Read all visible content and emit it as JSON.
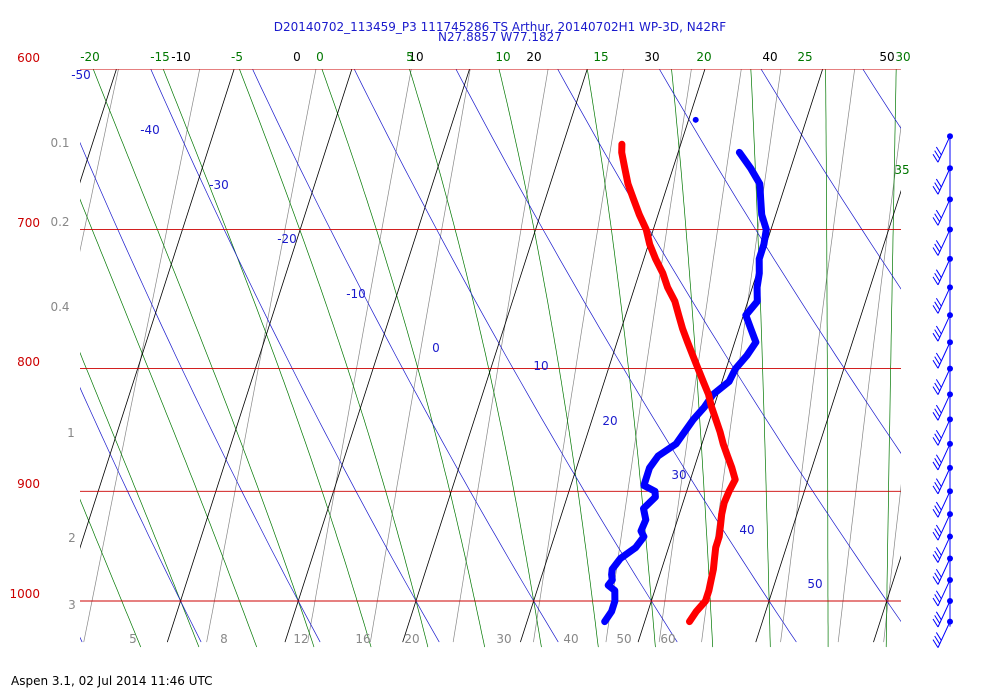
{
  "title_line1": "D20140702_113459_P3 111745286 TS Arthur, 20140702H1 WP-3D, N42RF",
  "title_line2": "N27.8857 W77.1827",
  "footer": "Aspen 3.1, 02 Jul 2014  11:46 UTC",
  "colors": {
    "isobar": "#cc0000",
    "isotherm": "#000000",
    "dry_adiabat": "#1a1acc",
    "moist_adiabat": "#007700",
    "mixing_ratio": "#888888",
    "temperature": "#ff0000",
    "dewpoint": "#0000ff",
    "wind": "#0000ff"
  },
  "chart_data": {
    "type": "skew-t",
    "pressure_range_hPa": [
      1025,
      600
    ],
    "pressure_labels": [
      "600",
      "700",
      "800",
      "900",
      "1000"
    ],
    "isobars_hPa": [
      600,
      700,
      800,
      900,
      1000
    ],
    "isotherm_labels": [
      "-10",
      "0",
      "10",
      "20",
      "30",
      "40",
      "50"
    ],
    "isotherms_C": [
      -20,
      -10,
      0,
      10,
      20,
      30,
      40,
      50,
      60
    ],
    "dry_adiabat_labels": [
      "-50",
      "-40",
      "-30",
      "-20",
      "-10",
      "0",
      "10",
      "20",
      "30",
      "40",
      "50"
    ],
    "moist_adiabat_labels": [
      "-20",
      "-15",
      "-5",
      "0",
      "5",
      "10",
      "15",
      "20",
      "25",
      "30",
      "35"
    ],
    "mixing_ratio_left_labels": [
      "0.1",
      "0.2",
      "0.4",
      "1",
      "2",
      "3"
    ],
    "mixing_ratio_bottom_labels": [
      "5",
      "8",
      "12",
      "16",
      "20",
      "30",
      "40",
      "50",
      "60"
    ],
    "temperature_profile": [
      {
        "p": 1020,
        "t": 23.8
      },
      {
        "p": 1010,
        "t": 24.1
      },
      {
        "p": 1000,
        "t": 24.6
      },
      {
        "p": 990,
        "t": 24.6
      },
      {
        "p": 980,
        "t": 24.5
      },
      {
        "p": 970,
        "t": 24.4
      },
      {
        "p": 960,
        "t": 24.2
      },
      {
        "p": 950,
        "t": 24.0
      },
      {
        "p": 940,
        "t": 24.0
      },
      {
        "p": 930,
        "t": 23.8
      },
      {
        "p": 920,
        "t": 23.6
      },
      {
        "p": 910,
        "t": 23.5
      },
      {
        "p": 900,
        "t": 23.6
      },
      {
        "p": 890,
        "t": 23.8
      },
      {
        "p": 880,
        "t": 23.2
      },
      {
        "p": 870,
        "t": 22.5
      },
      {
        "p": 860,
        "t": 21.8
      },
      {
        "p": 850,
        "t": 21.2
      },
      {
        "p": 840,
        "t": 20.5
      },
      {
        "p": 830,
        "t": 19.8
      },
      {
        "p": 820,
        "t": 19.2
      },
      {
        "p": 810,
        "t": 18.4
      },
      {
        "p": 800,
        "t": 17.6
      },
      {
        "p": 790,
        "t": 16.8
      },
      {
        "p": 780,
        "t": 16.0
      },
      {
        "p": 770,
        "t": 15.2
      },
      {
        "p": 760,
        "t": 14.5
      },
      {
        "p": 750,
        "t": 13.8
      },
      {
        "p": 740,
        "t": 12.8
      },
      {
        "p": 730,
        "t": 12.0
      },
      {
        "p": 720,
        "t": 11.0
      },
      {
        "p": 710,
        "t": 10.1
      },
      {
        "p": 700,
        "t": 9.4
      },
      {
        "p": 690,
        "t": 8.4
      },
      {
        "p": 680,
        "t": 7.5
      },
      {
        "p": 670,
        "t": 6.6
      },
      {
        "p": 660,
        "t": 5.9
      },
      {
        "p": 650,
        "t": 5.2
      },
      {
        "p": 645,
        "t": 5.0
      }
    ],
    "dewpoint_profile": [
      {
        "p": 1020,
        "t": 16.6
      },
      {
        "p": 1010,
        "t": 16.9
      },
      {
        "p": 1000,
        "t": 16.9
      },
      {
        "p": 990,
        "t": 16.6
      },
      {
        "p": 985,
        "t": 15.9
      },
      {
        "p": 980,
        "t": 16.1
      },
      {
        "p": 975,
        "t": 15.9
      },
      {
        "p": 970,
        "t": 15.8
      },
      {
        "p": 960,
        "t": 16.2
      },
      {
        "p": 950,
        "t": 17.2
      },
      {
        "p": 940,
        "t": 17.6
      },
      {
        "p": 935,
        "t": 17.2
      },
      {
        "p": 925,
        "t": 17.3
      },
      {
        "p": 915,
        "t": 16.8
      },
      {
        "p": 905,
        "t": 17.5
      },
      {
        "p": 900,
        "t": 17.3
      },
      {
        "p": 895,
        "t": 16.2
      },
      {
        "p": 890,
        "t": 16.2
      },
      {
        "p": 880,
        "t": 16.2
      },
      {
        "p": 870,
        "t": 16.6
      },
      {
        "p": 860,
        "t": 17.8
      },
      {
        "p": 850,
        "t": 18.2
      },
      {
        "p": 840,
        "t": 18.6
      },
      {
        "p": 830,
        "t": 19.2
      },
      {
        "p": 820,
        "t": 19.6
      },
      {
        "p": 810,
        "t": 20.6
      },
      {
        "p": 800,
        "t": 20.8
      },
      {
        "p": 790,
        "t": 21.4
      },
      {
        "p": 780,
        "t": 21.8
      },
      {
        "p": 770,
        "t": 21.0
      },
      {
        "p": 760,
        "t": 20.2
      },
      {
        "p": 750,
        "t": 20.8
      },
      {
        "p": 740,
        "t": 20.4
      },
      {
        "p": 730,
        "t": 20.2
      },
      {
        "p": 720,
        "t": 19.8
      },
      {
        "p": 710,
        "t": 19.8
      },
      {
        "p": 700,
        "t": 19.6
      },
      {
        "p": 690,
        "t": 18.8
      },
      {
        "p": 680,
        "t": 18.3
      },
      {
        "p": 670,
        "t": 17.8
      },
      {
        "p": 660,
        "t": 16.6
      },
      {
        "p": 650,
        "t": 15.2
      }
    ],
    "dewpoint_outlier": {
      "p": 630,
      "t": 10.6
    },
    "wind_barb_pressures_hPa": [
      640,
      660,
      680,
      700,
      720,
      740,
      760,
      780,
      800,
      820,
      840,
      860,
      880,
      900,
      920,
      940,
      960,
      980,
      1000,
      1020
    ]
  }
}
